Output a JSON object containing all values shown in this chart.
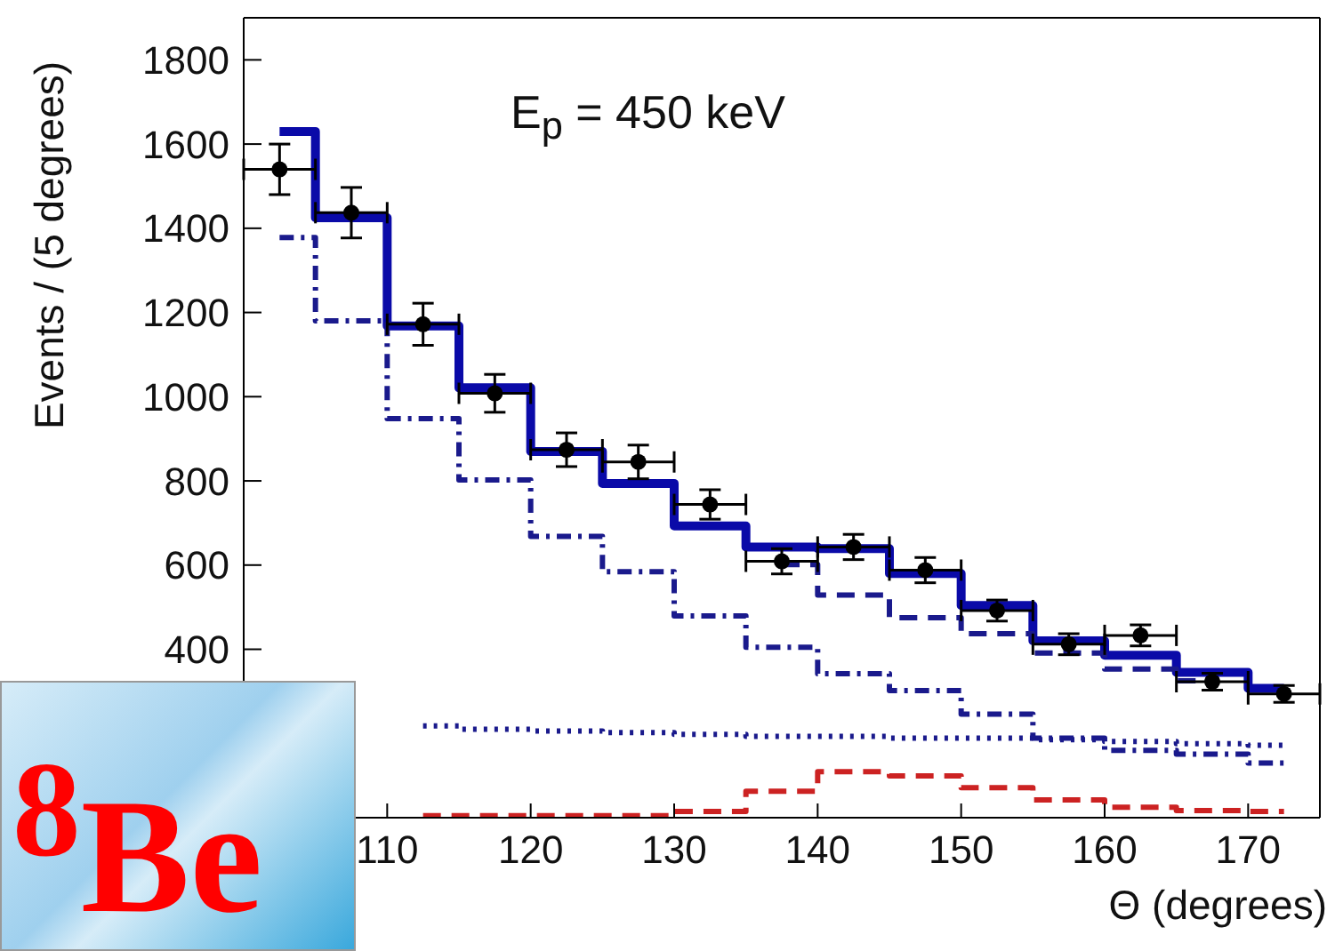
{
  "chart_data": {
    "type": "step",
    "xlabel": "Θ (degrees)",
    "ylabel": "Events / (5 degrees)",
    "annotations": [
      "E$_{p}$ = 450 keV",
      "$^{8}$Be"
    ],
    "x": [
      102.5,
      107.5,
      112.5,
      117.5,
      122.5,
      127.5,
      132.5,
      137.5,
      142.5,
      147.5,
      152.5,
      157.5,
      162.5,
      167.5,
      172.5
    ],
    "xlim": [
      100,
      175
    ],
    "xticks": [
      110,
      120,
      130,
      140,
      150,
      160,
      170
    ],
    "ylim": [
      0,
      1900
    ],
    "yticks": [
      400,
      600,
      800,
      1000,
      1200,
      1400,
      1600,
      1800
    ],
    "grid": false,
    "legend": false,
    "series": [
      {
        "color": "#0a0aa8",
        "line_style": "solid",
        "values": [
          1630,
          1425,
          1168,
          1021,
          870,
          794,
          693,
          643,
          639,
          580,
          504,
          420,
          386,
          345,
          307
        ]
      },
      {
        "color": "#1a1a8c",
        "line_style": "dashdot",
        "values": [
          1378,
          1180,
          948,
          802,
          668,
          584,
          479,
          405,
          342,
          302,
          246,
          189,
          160,
          151,
          130
        ]
      },
      {
        "color": "#1a1a8c",
        "line_style": "dashed",
        "values": [
          null,
          null,
          null,
          null,
          null,
          null,
          null,
          601,
          529,
          475,
          437,
          391,
          353,
          325,
          null
        ]
      },
      {
        "color": "#1a1a8c",
        "line_style": "dotted",
        "values": [
          null,
          null,
          218,
          210,
          206,
          202,
          198,
          193,
          193,
          189,
          189,
          185,
          181,
          176,
          172
        ]
      },
      {
        "color": "#cc2222",
        "line_style": "dashed",
        "values": [
          null,
          null,
          5,
          5,
          5,
          5,
          15,
          63,
          109,
          99,
          71,
          42,
          25,
          17,
          15
        ]
      },
      {
        "type": "scatter",
        "color": "#000000",
        "marker": "circle",
        "values": [
          1540,
          1437,
          1172,
          1008,
          874,
          845,
          744,
          609,
          643,
          588,
          492,
          412,
          433,
          323,
          294
        ],
        "errors": [
          60,
          60,
          50,
          45,
          40,
          40,
          35,
          30,
          30,
          30,
          25,
          25,
          25,
          20,
          20
        ],
        "xerrors": [
          2.5,
          2.5,
          2.5,
          2.5,
          2.5,
          2.5,
          2.5,
          2.5,
          2.5,
          2.5,
          2.5,
          2.5,
          2.5,
          2.5,
          2.5
        ]
      }
    ]
  }
}
